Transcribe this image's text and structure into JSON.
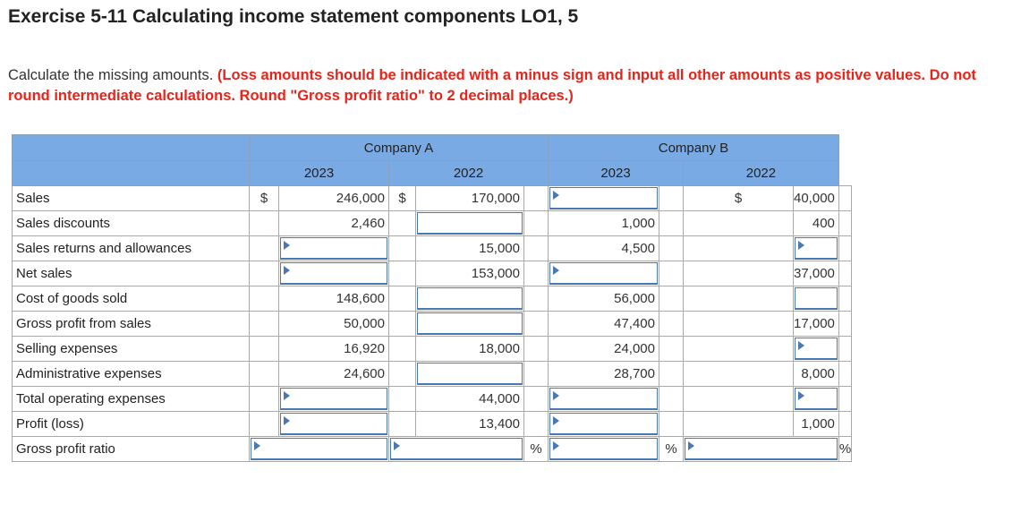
{
  "title": "Exercise 5-11 Calculating income statement components LO1, 5",
  "instructions": {
    "lead": "Calculate the missing amounts.",
    "note": "(Loss amounts should be indicated with a minus sign and input all other amounts as positive values. Do not round intermediate calculations. Round \"Gross profit ratio\" to 2 decimal places.)"
  },
  "table": {
    "companies": [
      "Company A",
      "Company B"
    ],
    "years": [
      "2023",
      "2022",
      "2023",
      "2022"
    ],
    "currency_symbol": "$",
    "percent_symbol": "%",
    "rows": [
      {
        "label": "Sales",
        "cells": [
          "246,000",
          "170,000",
          "",
          "40,000"
        ]
      },
      {
        "label": "Sales discounts",
        "cells": [
          "2,460",
          "",
          "1,000",
          "400"
        ]
      },
      {
        "label": "Sales returns and allowances",
        "cells": [
          "",
          "15,000",
          "4,500",
          ""
        ]
      },
      {
        "label": "Net sales",
        "cells": [
          "",
          "153,000",
          "",
          "37,000"
        ]
      },
      {
        "label": "Cost of goods sold",
        "cells": [
          "148,600",
          "",
          "56,000",
          ""
        ]
      },
      {
        "label": "Gross profit from sales",
        "cells": [
          "50,000",
          "",
          "47,400",
          "17,000"
        ]
      },
      {
        "label": "Selling expenses",
        "cells": [
          "16,920",
          "18,000",
          "24,000",
          ""
        ]
      },
      {
        "label": "Administrative expenses",
        "cells": [
          "24,600",
          "",
          "28,700",
          "8,000"
        ]
      },
      {
        "label": "Total operating expenses",
        "cells": [
          "",
          "44,000",
          "",
          ""
        ]
      },
      {
        "label": "Profit (loss)",
        "cells": [
          "",
          "13,400",
          "",
          "1,000"
        ]
      },
      {
        "label": "Gross profit ratio",
        "cells": [
          "",
          "",
          "",
          ""
        ]
      }
    ]
  },
  "colors": {
    "header_bg": "#7aaae4",
    "note_red": "#e8231a",
    "input_border": "#4a78b4"
  }
}
